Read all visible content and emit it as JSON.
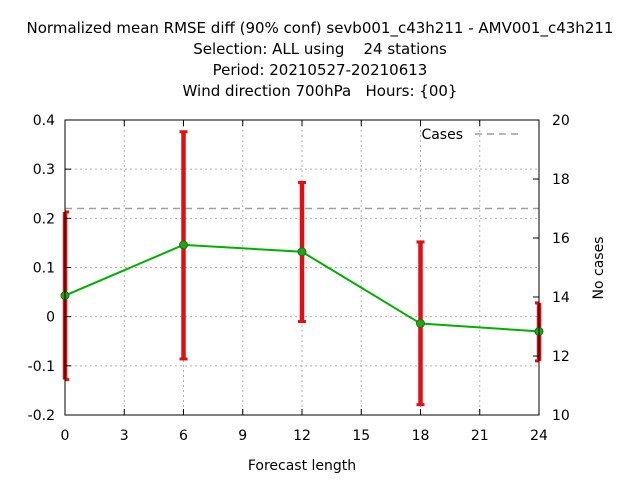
{
  "titles": [
    "Normalized mean RMSE diff (90% conf) sevb001_c43h211 - AMV001_c43h211",
    "Selection: ALL using    24 stations",
    "Period: 20210527-20210613",
    "Wind direction 700hPa   Hours: {00}"
  ],
  "chart_data": {
    "type": "line",
    "xlabel": "Forecast length",
    "ylabel": "",
    "y2label": "No cases",
    "xlim": [
      0,
      24
    ],
    "ylim": [
      -0.2,
      0.4
    ],
    "y2lim": [
      10,
      20
    ],
    "x_ticks": [
      "0",
      "3",
      "6",
      "9",
      "12",
      "15",
      "18",
      "21",
      "24"
    ],
    "y_ticks": [
      "-0.2",
      "-0.1",
      "0",
      "0.1",
      "0.2",
      "0.3",
      "0.4"
    ],
    "y2_ticks": [
      "10",
      "12",
      "14",
      "16",
      "18",
      "20"
    ],
    "grid": true,
    "legend_position": "top-right",
    "series": [
      {
        "kind": "line-with-errorbars",
        "color": "#00b000",
        "errorbar_color": "#e01010",
        "x": [
          0,
          6,
          12,
          18,
          24
        ],
        "y": [
          0.043,
          0.146,
          0.132,
          -0.014,
          -0.03
        ],
        "lower": [
          -0.128,
          -0.086,
          -0.01,
          -0.179,
          -0.09
        ],
        "upper": [
          0.213,
          0.376,
          0.273,
          0.152,
          0.028
        ]
      },
      {
        "name": "Cases",
        "kind": "dashed-line",
        "axis": "y2",
        "color": "#a0a0a0",
        "x": [
          0,
          6,
          12,
          18,
          24
        ],
        "y": [
          17,
          17,
          17,
          17,
          17
        ]
      }
    ]
  }
}
